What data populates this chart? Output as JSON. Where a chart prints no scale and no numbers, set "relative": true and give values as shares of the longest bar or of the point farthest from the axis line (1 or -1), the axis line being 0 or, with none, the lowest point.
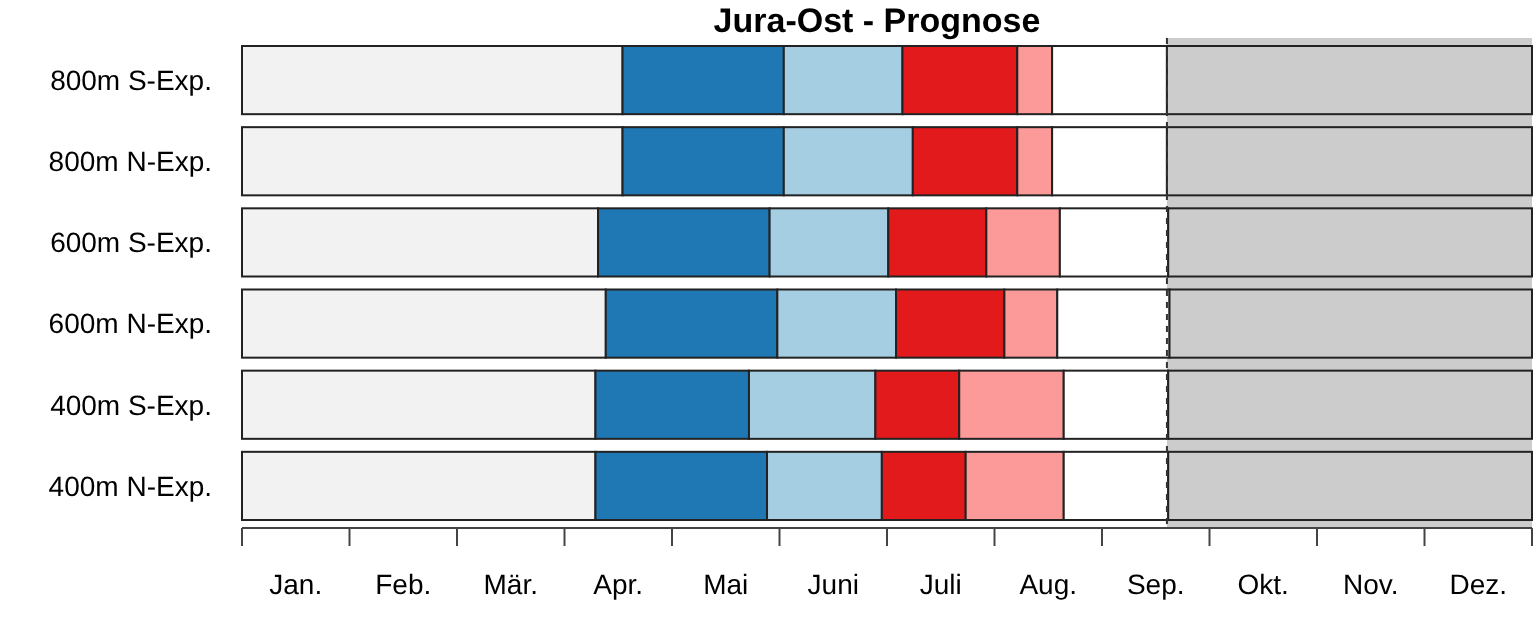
{
  "chart_data": {
    "type": "bar",
    "title": "Jura-Ost - Prognose",
    "orientation": "horizontal",
    "stacked": true,
    "relative": true,
    "categories": [
      "800m S-Exp.",
      "800m N-Exp.",
      "600m S-Exp.",
      "600m N-Exp.",
      "400m S-Exp.",
      "400m N-Exp."
    ],
    "series": [
      {
        "color": "#f2f2f2",
        "values": [
          0.295,
          0.295,
          0.276,
          0.282,
          0.274,
          0.274
        ]
      },
      {
        "color": "#1f78b4",
        "values": [
          0.125,
          0.125,
          0.133,
          0.133,
          0.119,
          0.133
        ]
      },
      {
        "color": "#a6cee3",
        "values": [
          0.092,
          0.1,
          0.092,
          0.092,
          0.098,
          0.089
        ]
      },
      {
        "color": "#e31a1c",
        "values": [
          0.089,
          0.081,
          0.076,
          0.084,
          0.065,
          0.065
        ]
      },
      {
        "color": "#fb9a99",
        "values": [
          0.027,
          0.027,
          0.057,
          0.041,
          0.081,
          0.076
        ]
      },
      {
        "color": "#ffffff",
        "values": [
          0.089,
          0.089,
          0.084,
          0.087,
          0.081,
          0.081
        ]
      },
      {
        "color": "#cccccc",
        "values": [
          0.283,
          0.283,
          0.282,
          0.281,
          0.282,
          0.282
        ]
      }
    ],
    "ref_lines": [
      {
        "axis": "x",
        "value": 0.717,
        "line_style": "dashed"
      }
    ],
    "annotations": [
      "Jan.",
      "Feb.",
      "Mär.",
      "Apr.",
      "Mai",
      "Juni",
      "Juli",
      "Aug.",
      "Sep.",
      "Okt.",
      "Nov.",
      "Dez."
    ]
  }
}
